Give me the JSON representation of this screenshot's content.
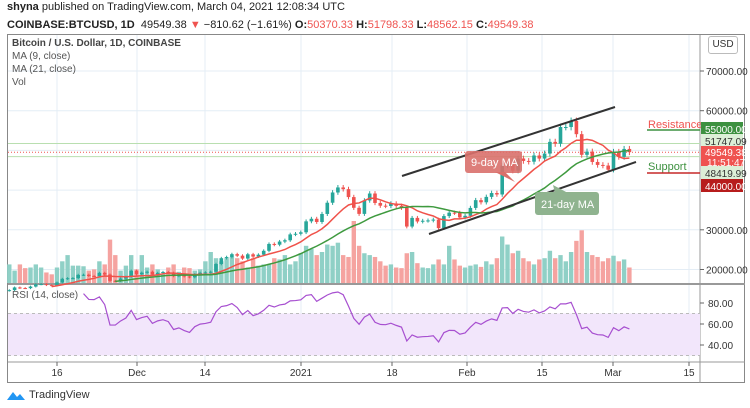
{
  "header": {
    "author": "shyna",
    "published": "published on TradingView.com, March 04, 2021 12:08:34 UTC",
    "symbol": "COINBASE:BTCUSD, 1D",
    "last": "49549.38",
    "change": "−810.62 (−1.61%)",
    "o_label": "O:",
    "o": "50370.33",
    "h_label": "H:",
    "h": "51798.33",
    "l_label": "L:",
    "l": "48562.15",
    "c_label": "C:",
    "c": "49549.38"
  },
  "legend": {
    "title": "Bitcoin / U.S. Dollar, 1D, COINBASE",
    "ma9": "MA (9, close)",
    "ma21": "MA (21, close)",
    "vol": "Vol"
  },
  "currency_button": "USD",
  "price_axis": {
    "ticks": [
      "70000.00",
      "60000.00",
      "30000.00",
      "20000.00"
    ],
    "labels": {
      "resistance_level": "55000.00",
      "upper_line": "51747.09",
      "last_price": "49549.38",
      "countdown": "11:51:47",
      "lower_line": "48419.99",
      "support_level": "44000.00"
    }
  },
  "annotations": {
    "resistance": "Resistance",
    "support": "Support",
    "ma9": "9-day MA",
    "ma21": "21-day MA"
  },
  "rsi": {
    "label": "RSI (14, close)",
    "ticks": [
      "80.00",
      "60.00",
      "40.00"
    ]
  },
  "x_axis": {
    "ticks": [
      "16",
      "Dec",
      "14",
      "2021",
      "18",
      "Feb",
      "15",
      "Mar",
      "15"
    ]
  },
  "brand": "TradingView",
  "colors": {
    "up": "#26a69a",
    "down": "#ef5350",
    "ma9": "#f0524a",
    "ma21": "#3f9a3f",
    "rsi": "#9c27b0",
    "resistance": "#3d9140",
    "support_tag": "#b71c1c"
  },
  "chart_data": {
    "type": "candlestick",
    "price_range": [
      12000,
      75000
    ],
    "rsi_bands": [
      30,
      70
    ],
    "months": [
      {
        "month": "2020-11",
        "first_day": 7,
        "close": [
          14800,
          15480,
          15330,
          15300,
          15700,
          16280,
          16330,
          16070,
          15960,
          16730,
          17650,
          17800,
          17820,
          18650,
          18680,
          18370,
          18360,
          19160,
          18720,
          17150,
          17140,
          17720,
          18180,
          19700
        ],
        "volume": [
          30,
          20,
          30,
          24,
          25,
          30,
          25,
          17,
          14,
          25,
          35,
          45,
          28,
          28,
          27,
          20,
          22,
          35,
          30,
          70,
          45,
          20,
          28,
          45
        ]
      },
      {
        "month": "2020-12",
        "first_day": 1,
        "close": [
          18790,
          19200,
          19440,
          18700,
          19150,
          19360,
          19170,
          18320,
          18550,
          18250,
          18040,
          18800,
          19170,
          19270,
          19440,
          21380,
          22850,
          23130,
          23860,
          23480,
          22750,
          23830,
          23250,
          23730,
          24710,
          26440,
          26250,
          27040,
          27360,
          28840,
          29000
        ],
        "volume": [
          22,
          45,
          25,
          30,
          22,
          15,
          25,
          30,
          18,
          25,
          24,
          20,
          22,
          35,
          50,
          40,
          35,
          40,
          42,
          40,
          35,
          25,
          40,
          28,
          30,
          30,
          40,
          38,
          45,
          30,
          35
        ]
      },
      {
        "month": "2021-01",
        "first_day": 1,
        "close": [
          29370,
          32130,
          32780,
          31970,
          33990,
          36820,
          39400,
          40670,
          40240,
          38240,
          35540,
          34010,
          37390,
          39140,
          36760,
          36070,
          35990,
          36630,
          36030,
          35550,
          30820,
          33000,
          32090,
          32280,
          32360,
          32570,
          30430,
          33460,
          34320,
          34270,
          33110
        ],
        "volume": [
          48,
          60,
          55,
          45,
          50,
          62,
          60,
          65,
          45,
          42,
          100,
          60,
          48,
          45,
          42,
          35,
          28,
          30,
          25,
          24,
          48,
          50,
          32,
          25,
          24,
          30,
          38,
          30,
          60,
          38,
          28
        ]
      },
      {
        "month": "2021-02",
        "first_day": 1,
        "close": [
          33520,
          35510,
          37470,
          36930,
          38290,
          39260,
          38900,
          46200,
          46480,
          44900,
          47960,
          47350,
          47160,
          48720,
          47940,
          49200,
          52150,
          51680,
          55890,
          55890,
          57410,
          54090,
          48890,
          49700,
          47090,
          46340,
          46190,
          45140
        ],
        "volume": [
          25,
          28,
          30,
          26,
          35,
          30,
          40,
          75,
          62,
          48,
          52,
          40,
          35,
          30,
          38,
          40,
          52,
          40,
          45,
          35,
          50,
          68,
          85,
          50,
          45,
          42,
          35,
          40
        ]
      },
      {
        "month": "2021-03",
        "first_day": 1,
        "close": [
          49630,
          48380,
          50370,
          49549.38
        ],
        "volume": [
          44,
          35,
          38,
          25
        ]
      }
    ],
    "horizontal_levels": {
      "resistance": 55000,
      "upper": 51747.09,
      "last": 49549.38,
      "lower": 48419.99,
      "support": 44000
    },
    "channel": {
      "upper": [
        [
          "2021-01-20",
          40000
        ],
        [
          "2021-02-28",
          59500
        ]
      ],
      "lower": [
        [
          "2021-01-25",
          30000
        ],
        [
          "2021-03-04",
          48000
        ]
      ]
    }
  }
}
